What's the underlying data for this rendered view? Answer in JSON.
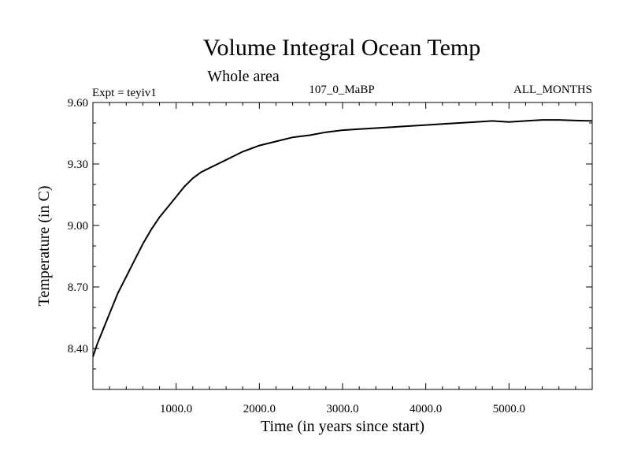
{
  "chart_data": {
    "type": "line",
    "title": "Volume Integral Ocean Temp",
    "subtitle": "Whole area",
    "left_label": "Expt = teyiv1",
    "center_label": "107_0_MaBP",
    "right_label": "ALL_MONTHS",
    "xlabel": "Time (in years since start)",
    "ylabel": "Temperature (in C)",
    "xlim": [
      0,
      6000
    ],
    "ylim": [
      8.2,
      9.6
    ],
    "x_ticks": [
      1000,
      2000,
      3000,
      4000,
      5000
    ],
    "x_tick_labels": [
      "1000.0",
      "2000.0",
      "3000.0",
      "4000.0",
      "5000.0"
    ],
    "y_ticks": [
      8.4,
      8.7,
      9.0,
      9.3,
      9.6
    ],
    "y_tick_labels": [
      "8.40",
      "8.70",
      "9.00",
      "9.30",
      "9.60"
    ],
    "grid": false,
    "series": [
      {
        "name": "Volume integral ocean temperature",
        "color": "#000000",
        "x": [
          0,
          50,
          100,
          200,
          300,
          400,
          500,
          600,
          700,
          800,
          900,
          1000,
          1100,
          1200,
          1300,
          1400,
          1500,
          1600,
          1700,
          1800,
          1900,
          2000,
          2200,
          2400,
          2600,
          2800,
          3000,
          3200,
          3400,
          3600,
          3800,
          4000,
          4200,
          4400,
          4600,
          4800,
          5000,
          5200,
          5400,
          5600,
          5800,
          6000
        ],
        "values": [
          8.36,
          8.42,
          8.47,
          8.57,
          8.67,
          8.75,
          8.83,
          8.91,
          8.98,
          9.04,
          9.09,
          9.14,
          9.19,
          9.23,
          9.26,
          9.28,
          9.3,
          9.32,
          9.34,
          9.36,
          9.375,
          9.39,
          9.41,
          9.43,
          9.44,
          9.455,
          9.465,
          9.47,
          9.475,
          9.48,
          9.485,
          9.49,
          9.495,
          9.5,
          9.505,
          9.51,
          9.505,
          9.51,
          9.515,
          9.515,
          9.512,
          9.51
        ]
      }
    ]
  }
}
